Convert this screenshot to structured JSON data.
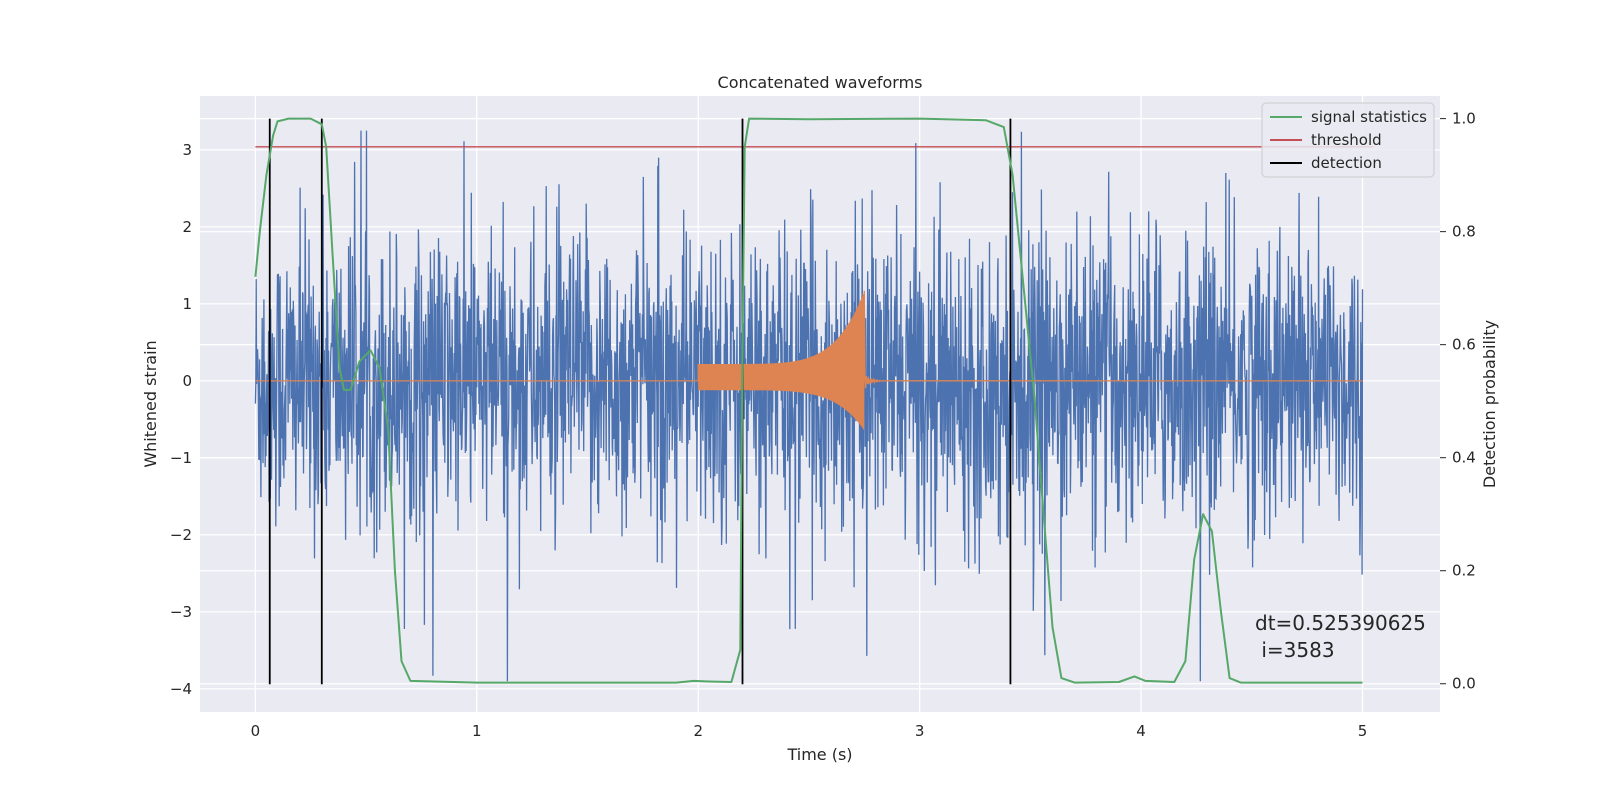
{
  "chart_data": {
    "type": "line",
    "title": "Concatenated waveforms",
    "xlabel": "Time (s)",
    "ylabel": "Whitened strain",
    "y2label": "Detection probability",
    "xlim": [
      -0.25,
      5.35
    ],
    "ylim": [
      -4.3,
      3.7
    ],
    "y2lim": [
      -0.05,
      1.04
    ],
    "x_ticks": [
      "0",
      "1",
      "2",
      "3",
      "4",
      "5"
    ],
    "y_ticks": [
      "3",
      "2",
      "1",
      "0",
      "−1",
      "−2",
      "−3",
      "−4"
    ],
    "y2_ticks": [
      "1.0",
      "0.8",
      "0.6",
      "0.4",
      "0.2",
      "0.0"
    ],
    "grid": true,
    "legend_position": "top-right",
    "series": [
      {
        "name": "signal statistics",
        "color": "#55a868",
        "axis": "right",
        "points": [
          [
            0,
            0.72
          ],
          [
            0.02,
            0.8
          ],
          [
            0.05,
            0.9
          ],
          [
            0.08,
            0.97
          ],
          [
            0.1,
            0.995
          ],
          [
            0.15,
            1.0
          ],
          [
            0.25,
            1.0
          ],
          [
            0.3,
            0.99
          ],
          [
            0.32,
            0.95
          ],
          [
            0.35,
            0.75
          ],
          [
            0.38,
            0.56
          ],
          [
            0.4,
            0.52
          ],
          [
            0.43,
            0.52
          ],
          [
            0.47,
            0.57
          ],
          [
            0.52,
            0.59
          ],
          [
            0.56,
            0.56
          ],
          [
            0.6,
            0.45
          ],
          [
            0.63,
            0.2
          ],
          [
            0.66,
            0.04
          ],
          [
            0.7,
            0.005
          ],
          [
            1.0,
            0.002
          ],
          [
            1.5,
            0.002
          ],
          [
            1.9,
            0.002
          ],
          [
            1.98,
            0.005
          ],
          [
            2.05,
            0.004
          ],
          [
            2.15,
            0.003
          ],
          [
            2.19,
            0.06
          ],
          [
            2.2,
            0.6
          ],
          [
            2.21,
            0.95
          ],
          [
            2.23,
            1.0
          ],
          [
            2.5,
            0.999
          ],
          [
            3.0,
            1.0
          ],
          [
            3.3,
            0.997
          ],
          [
            3.38,
            0.985
          ],
          [
            3.42,
            0.9
          ],
          [
            3.47,
            0.7
          ],
          [
            3.52,
            0.5
          ],
          [
            3.56,
            0.3
          ],
          [
            3.6,
            0.1
          ],
          [
            3.64,
            0.01
          ],
          [
            3.7,
            0.002
          ],
          [
            3.9,
            0.003
          ],
          [
            3.97,
            0.013
          ],
          [
            4.02,
            0.005
          ],
          [
            4.15,
            0.003
          ],
          [
            4.2,
            0.04
          ],
          [
            4.24,
            0.22
          ],
          [
            4.28,
            0.3
          ],
          [
            4.32,
            0.27
          ],
          [
            4.36,
            0.13
          ],
          [
            4.4,
            0.01
          ],
          [
            4.45,
            0.002
          ],
          [
            5.0,
            0.002
          ]
        ]
      },
      {
        "name": "threshold",
        "color": "#c44e52",
        "axis": "right",
        "value": 0.95
      },
      {
        "name": "detection",
        "color": "#000000",
        "axis": "right",
        "x": [
          0.065,
          0.3,
          2.2,
          3.41
        ]
      },
      {
        "color": "#4c72b0",
        "axis": "left",
        "x_range": [
          0,
          5
        ],
        "approx_amplitude": 1.5
      },
      {
        "color": "#dd8452",
        "axis": "left",
        "x_range": [
          2.0,
          2.75
        ],
        "peak": 1.17
      }
    ],
    "annotations": [
      {
        "text": "dt=0.525390625\n i=3583"
      }
    ]
  },
  "legend": {
    "items": [
      "signal statistics",
      "threshold",
      "detection"
    ]
  },
  "annotation_lines": [
    "dt=0.525390625",
    " i=3583"
  ]
}
